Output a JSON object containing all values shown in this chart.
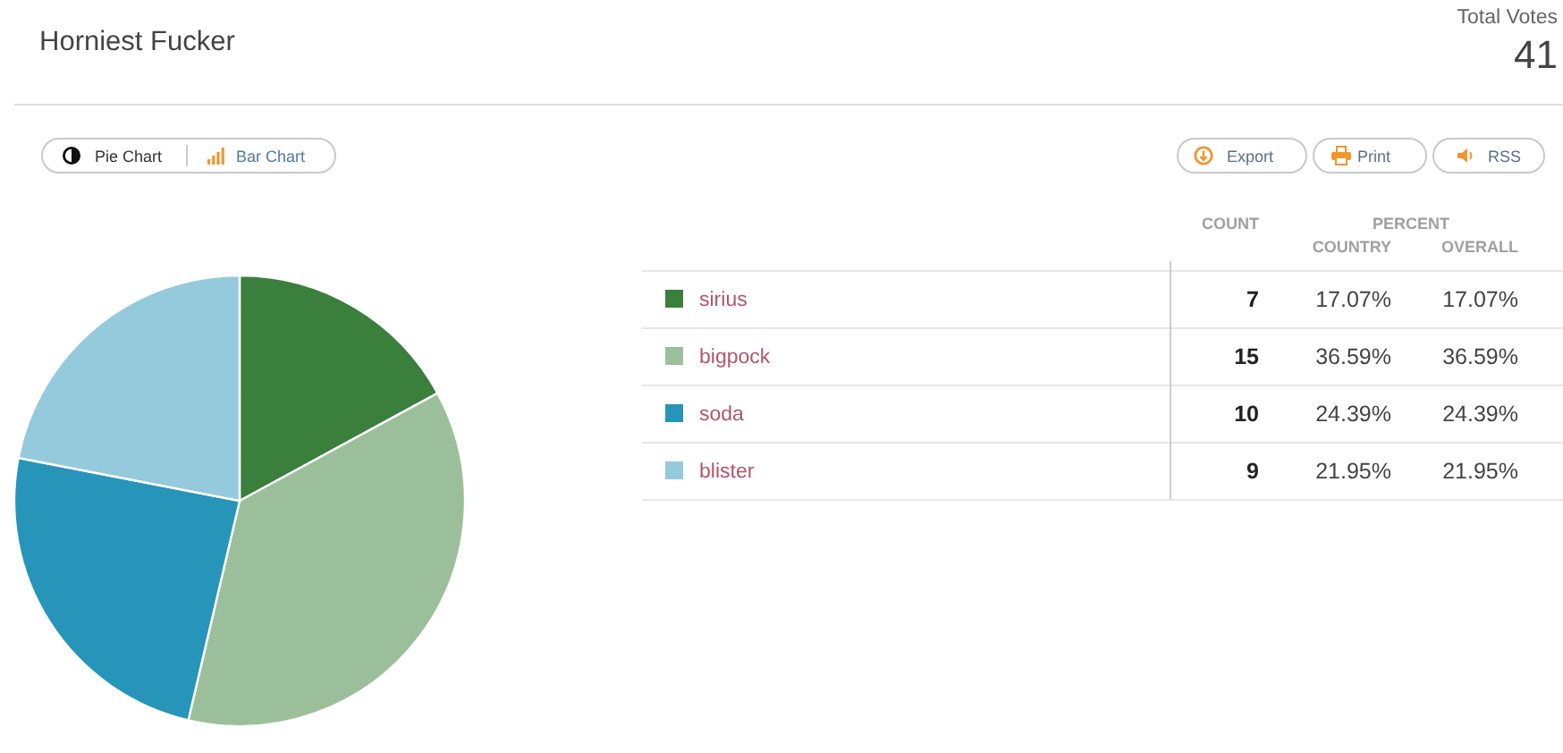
{
  "chart_data": {
    "type": "pie",
    "title": "Horniest Fucker",
    "categories": [
      "sirius",
      "bigpock",
      "soda",
      "blister"
    ],
    "values": [
      7,
      15,
      10,
      9
    ],
    "colors": [
      "#3a7f3c",
      "#9cbf9b",
      "#2795b9",
      "#94cadb"
    ],
    "data_labels": true,
    "legend": "right",
    "annotations": [
      "Total Votes",
      "41",
      "COUNT",
      "PERCENT",
      "COUNTRY",
      "OVERALL",
      "Pie Chart",
      "Bar Chart",
      "Export",
      "Print",
      "RSS",
      "17.07%",
      "36.59%",
      "24.39%",
      "21.95%"
    ]
  }
}
